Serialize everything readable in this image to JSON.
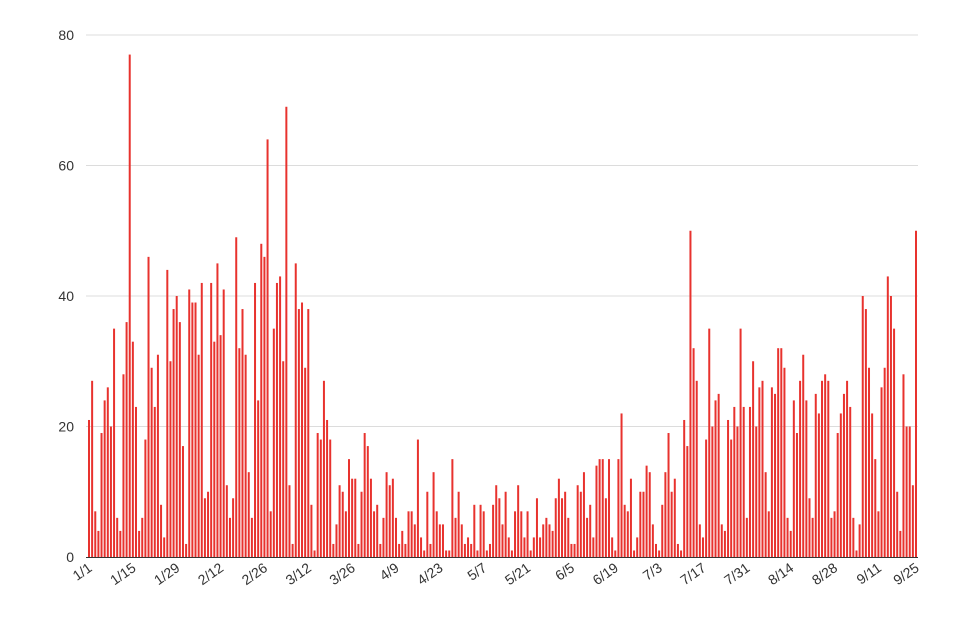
{
  "chart_data": {
    "type": "bar",
    "title": "",
    "xlabel": "",
    "ylabel": "",
    "ylim": [
      0,
      80
    ],
    "y_ticks": [
      0,
      20,
      40,
      60,
      80
    ],
    "grid": true,
    "bar_color": "#e8322e",
    "x_tick_labels": [
      "1/1",
      "1/15",
      "1/29",
      "2/12",
      "2/26",
      "3/12",
      "3/26",
      "4/9",
      "4/23",
      "5/7",
      "5/21",
      "6/5",
      "6/19",
      "7/3",
      "7/17",
      "7/31",
      "8/14",
      "8/28",
      "9/11",
      "9/25"
    ],
    "values": [
      21,
      27,
      7,
      4,
      19,
      24,
      26,
      20,
      35,
      6,
      4,
      28,
      36,
      77,
      33,
      23,
      4,
      6,
      18,
      46,
      29,
      23,
      31,
      8,
      3,
      44,
      30,
      38,
      40,
      36,
      17,
      2,
      41,
      39,
      39,
      31,
      42,
      9,
      10,
      42,
      33,
      45,
      34,
      41,
      11,
      6,
      9,
      49,
      32,
      38,
      31,
      13,
      6,
      42,
      24,
      48,
      46,
      64,
      7,
      35,
      42,
      43,
      30,
      69,
      11,
      2,
      45,
      38,
      39,
      29,
      38,
      8,
      1,
      19,
      18,
      27,
      21,
      18,
      2,
      5,
      11,
      10,
      7,
      15,
      12,
      12,
      2,
      10,
      19,
      17,
      12,
      7,
      8,
      2,
      6,
      13,
      11,
      12,
      6,
      2,
      4,
      2,
      7,
      7,
      5,
      18,
      3,
      1,
      10,
      2,
      13,
      7,
      5,
      5,
      1,
      1,
      15,
      6,
      10,
      5,
      2,
      3,
      2,
      8,
      1,
      8,
      7,
      1,
      2,
      8,
      11,
      9,
      5,
      10,
      3,
      1,
      7,
      11,
      7,
      3,
      7,
      1,
      3,
      9,
      3,
      5,
      6,
      5,
      4,
      9,
      12,
      9,
      10,
      6,
      2,
      2,
      11,
      10,
      13,
      6,
      8,
      3,
      14,
      15,
      15,
      9,
      15,
      3,
      1,
      15,
      22,
      8,
      7,
      12,
      1,
      3,
      10,
      10,
      14,
      13,
      5,
      2,
      1,
      8,
      13,
      19,
      10,
      12,
      2,
      1,
      21,
      17,
      50,
      32,
      27,
      5,
      3,
      18,
      35,
      20,
      24,
      25,
      5,
      4,
      21,
      18,
      23,
      20,
      35,
      23,
      6,
      23,
      30,
      20,
      26,
      27,
      13,
      7,
      26,
      25,
      32,
      32,
      29,
      6,
      4,
      24,
      19,
      27,
      31,
      24,
      9,
      6,
      25,
      22,
      27,
      28,
      27,
      6,
      7,
      19,
      22,
      25,
      27,
      23,
      6,
      1,
      5,
      40,
      38,
      29,
      22,
      15,
      7,
      26,
      29,
      43,
      40,
      35,
      10,
      4,
      28,
      20,
      20,
      11,
      50
    ]
  }
}
